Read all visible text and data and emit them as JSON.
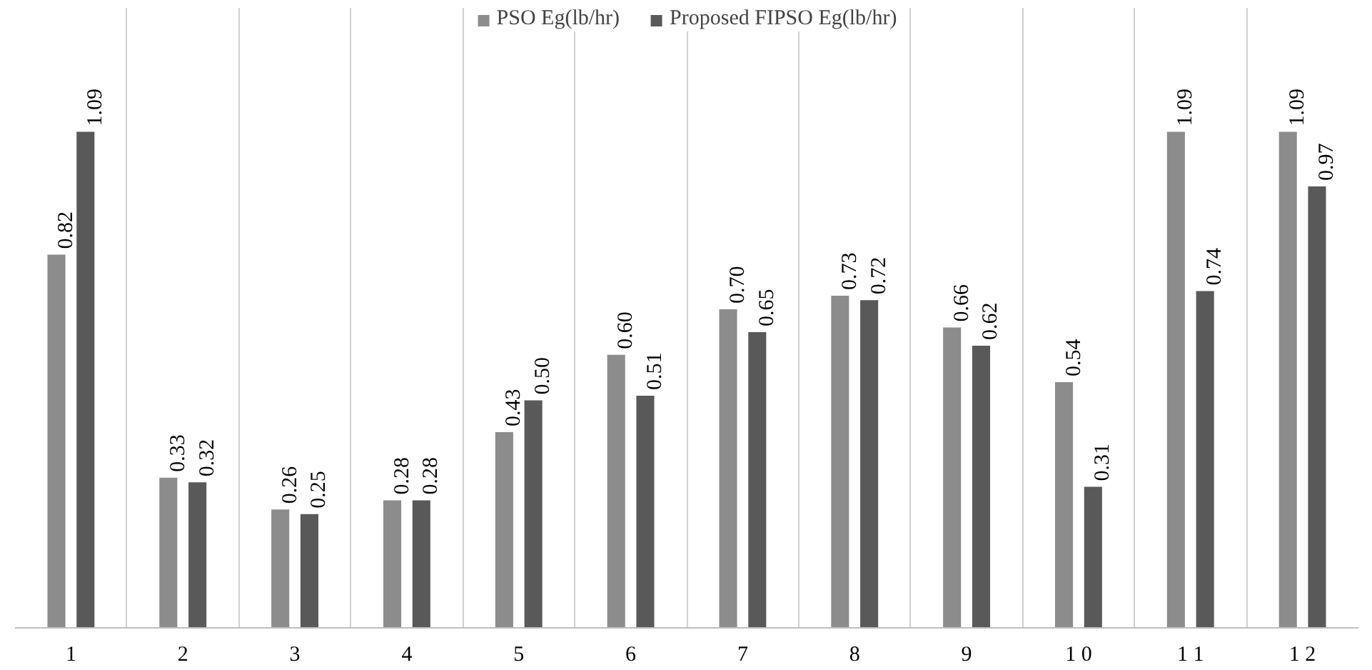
{
  "chart_data": {
    "type": "bar",
    "categories": [
      "1",
      "2",
      "3",
      "4",
      "5",
      "6",
      "7",
      "8",
      "9",
      "1 0",
      "1 1",
      "1 2"
    ],
    "series": [
      {
        "name": "PSO Eg(lb/hr)",
        "color": "#8c8c8c",
        "values": [
          0.82,
          0.33,
          0.26,
          0.28,
          0.43,
          0.6,
          0.7,
          0.73,
          0.66,
          0.54,
          1.09,
          1.09
        ],
        "value_labels": [
          "0.82",
          "0.33",
          "0.26",
          "0.28",
          "0.43",
          "0.60",
          "0.70",
          "0.73",
          "0.66",
          "0.54",
          "1.09",
          "1.09"
        ]
      },
      {
        "name": "Proposed FIPSO Eg(lb/hr)",
        "color": "#595959",
        "values": [
          1.09,
          0.32,
          0.25,
          0.28,
          0.5,
          0.51,
          0.65,
          0.72,
          0.62,
          0.31,
          0.74,
          0.97
        ],
        "value_labels": [
          "1.09",
          "0.32",
          "0.25",
          "0.28",
          "0.50",
          "0.51",
          "0.65",
          "0.72",
          "0.62",
          "0.31",
          "0.74",
          "0.97"
        ]
      }
    ],
    "legend": "top",
    "grid": "x"
  }
}
